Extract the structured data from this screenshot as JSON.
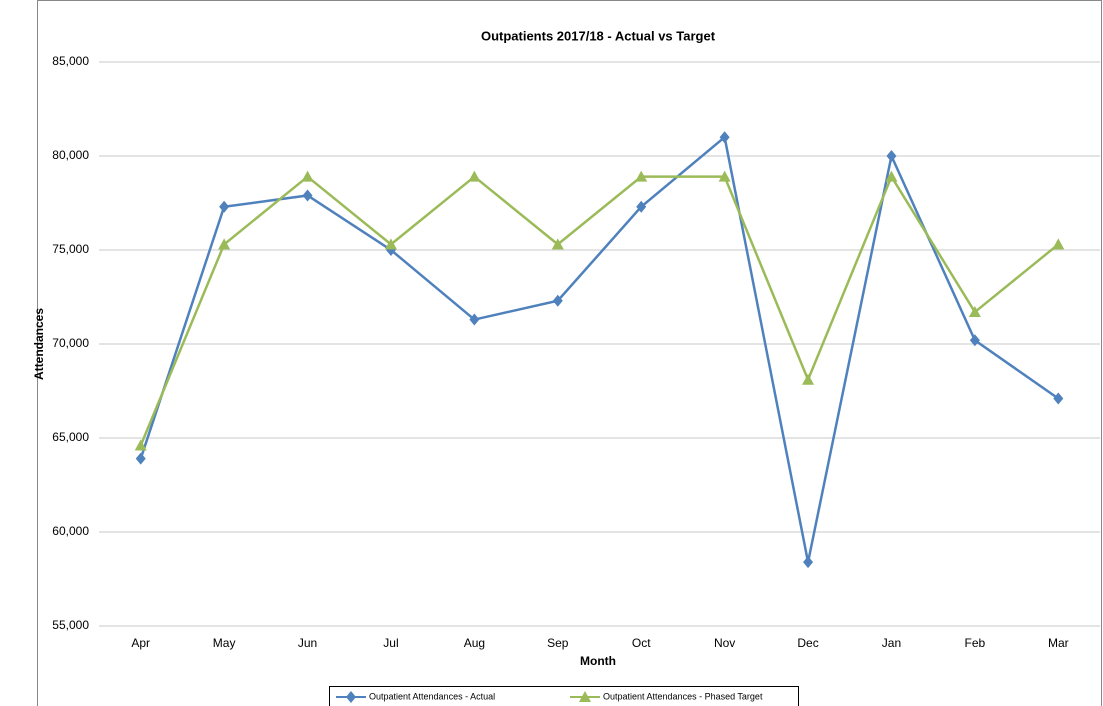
{
  "chart_data": {
    "type": "line",
    "title": "Outpatients 2017/18 - Actual vs Target",
    "x_label": "Month",
    "y_label": "Attendances",
    "categories": [
      "Apr",
      "May",
      "Jun",
      "Jul",
      "Aug",
      "Sep",
      "Oct",
      "Nov",
      "Dec",
      "Jan",
      "Feb",
      "Mar"
    ],
    "series": [
      {
        "name": "Outpatient Attendances - Actual",
        "color": "#4f81bd",
        "marker": "diamond",
        "values": [
          63900,
          77300,
          77900,
          75000,
          71300,
          72300,
          77300,
          81000,
          58400,
          80000,
          70200,
          67100
        ]
      },
      {
        "name": "Outpatient Attendances - Phased Target",
        "color": "#9bbb59",
        "marker": "triangle",
        "values": [
          64600,
          75300,
          78900,
          75300,
          78900,
          75300,
          78900,
          78900,
          68100,
          78900,
          71700,
          75300
        ]
      }
    ],
    "ylim": [
      55000,
      85000
    ],
    "yticks": [
      {
        "value": 55000,
        "label": "55,000"
      },
      {
        "value": 60000,
        "label": "60,000"
      },
      {
        "value": 65000,
        "label": "65,000"
      },
      {
        "value": 70000,
        "label": "70,000"
      },
      {
        "value": 75000,
        "label": "75,000"
      },
      {
        "value": 80000,
        "label": "80,000"
      },
      {
        "value": 85000,
        "label": "85,000"
      }
    ],
    "grid": true,
    "legend": "bottom"
  }
}
